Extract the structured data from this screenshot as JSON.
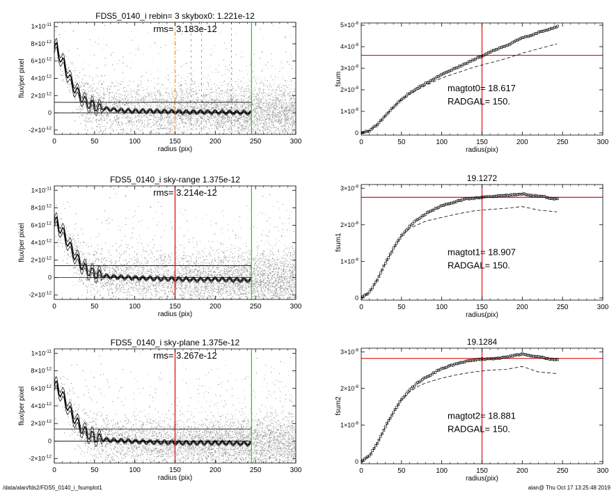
{
  "footer": {
    "path": "/data/alan/fds2/FDS5_0140_i_fsumplot1",
    "stamp": "alan@  Thu Oct 17 13:25:48 2019"
  },
  "colors": {
    "orange": "#ff8c1a",
    "red": "#dd1111",
    "green": "#22cc22",
    "scatter_dark": "#7a7a7a",
    "scatter_light": "#b8b8b8"
  },
  "chart_data": [
    {
      "type": "scatter",
      "id": "p1",
      "title": "FDS5_0140_i rebin= 3    skybox0:  1.221e-12",
      "annotation": "rms= 3.183e-12",
      "xlabel": "radius (pix)",
      "ylabel": "flux/per pixel",
      "xlim": [
        0,
        300
      ],
      "ylim": [
        -2.5e-12,
        1.05e-11
      ],
      "xticks": [
        "0",
        "50",
        "100",
        "150",
        "200",
        "250",
        "300"
      ],
      "yticks": [
        {
          "mant": "-2×10",
          "exp": "-12",
          "v": -2e-12
        },
        {
          "mant": "0",
          "exp": "",
          "v": 0
        },
        {
          "mant": "2×10",
          "exp": "-12",
          "v": 2e-12
        },
        {
          "mant": "4×10",
          "exp": "-12",
          "v": 4e-12
        },
        {
          "mant": "6×10",
          "exp": "-12",
          "v": 6e-12
        },
        {
          "mant": "8×10",
          "exp": "-12",
          "v": 8e-12
        },
        {
          "mant": "1×10",
          "exp": "-11",
          "v": 1e-11
        }
      ],
      "sky_level": 1.221e-12,
      "vlines": [
        {
          "x": 150,
          "color": "orange",
          "dashed": true
        },
        {
          "x": 245,
          "color": "green",
          "dashed": false
        }
      ],
      "extra_dashed_x": [
        170,
        183,
        220
      ],
      "profile": [
        [
          0,
          7.4e-12
        ],
        [
          3,
          7.6e-12
        ],
        [
          6,
          6.8e-12
        ],
        [
          9,
          6e-12
        ],
        [
          12,
          5.7e-12
        ],
        [
          15,
          4.9e-12
        ],
        [
          18,
          4.2e-12
        ],
        [
          21,
          3.6e-12
        ],
        [
          24,
          3e-12
        ],
        [
          27,
          2.6e-12
        ],
        [
          30,
          2.2e-12
        ],
        [
          33,
          1.9e-12
        ],
        [
          36,
          1.5e-12
        ],
        [
          39,
          1.2e-12
        ],
        [
          42,
          1.1e-12
        ],
        [
          45,
          9e-13
        ],
        [
          48,
          9e-13
        ],
        [
          51,
          8e-13
        ],
        [
          55,
          5e-13
        ],
        [
          60,
          5e-13
        ],
        [
          70,
          4e-13
        ],
        [
          80,
          3e-13
        ],
        [
          90,
          2.5e-13
        ],
        [
          100,
          2e-13
        ],
        [
          120,
          2e-13
        ],
        [
          140,
          1.5e-13
        ],
        [
          160,
          1e-13
        ],
        [
          180,
          1e-13
        ],
        [
          200,
          8e-14
        ],
        [
          220,
          5e-14
        ],
        [
          245,
          0.0
        ]
      ]
    },
    {
      "type": "line",
      "id": "p2",
      "title": "",
      "annotation_lines": [
        "magtot0=  18.617",
        "RADGAL=    150."
      ],
      "xlabel": "radius(pix)",
      "ylabel": "fsum",
      "xlim": [
        0,
        300
      ],
      "ylim": [
        -1e-09,
        5.1e-08
      ],
      "xticks": [
        "0",
        "50",
        "100",
        "150",
        "200",
        "250",
        "300"
      ],
      "yticks": [
        {
          "mant": "0",
          "exp": "",
          "v": 0
        },
        {
          "mant": "1×10",
          "exp": "-8",
          "v": 1e-08
        },
        {
          "mant": "2×10",
          "exp": "-8",
          "v": 2e-08
        },
        {
          "mant": "3×10",
          "exp": "-8",
          "v": 3e-08
        },
        {
          "mant": "4×10",
          "exp": "-8",
          "v": 4e-08
        },
        {
          "mant": "5×10",
          "exp": "-8",
          "v": 5e-08
        }
      ],
      "hline": 3.6e-08,
      "vline": 150,
      "series_squares": [
        [
          0,
          0
        ],
        [
          10,
          1e-09
        ],
        [
          20,
          4e-09
        ],
        [
          30,
          8e-09
        ],
        [
          40,
          1.2e-08
        ],
        [
          50,
          1.55e-08
        ],
        [
          60,
          1.85e-08
        ],
        [
          80,
          2.3e-08
        ],
        [
          100,
          2.7e-08
        ],
        [
          120,
          3.05e-08
        ],
        [
          140,
          3.4e-08
        ],
        [
          160,
          3.75e-08
        ],
        [
          180,
          4.05e-08
        ],
        [
          200,
          4.4e-08
        ],
        [
          220,
          4.65e-08
        ],
        [
          245,
          4.95e-08
        ]
      ],
      "series_dashed": [
        [
          0,
          0
        ],
        [
          10,
          1e-09
        ],
        [
          20,
          4e-09
        ],
        [
          30,
          8e-09
        ],
        [
          40,
          1.2e-08
        ],
        [
          50,
          1.55e-08
        ],
        [
          60,
          1.8e-08
        ],
        [
          80,
          2.2e-08
        ],
        [
          100,
          2.55e-08
        ],
        [
          120,
          2.8e-08
        ],
        [
          140,
          3.05e-08
        ],
        [
          160,
          3.25e-08
        ],
        [
          180,
          3.45e-08
        ],
        [
          200,
          3.7e-08
        ],
        [
          220,
          3.9e-08
        ],
        [
          245,
          4.15e-08
        ]
      ]
    },
    {
      "type": "scatter",
      "id": "p3",
      "title": "FDS5_0140_i sky-range  1.375e-12",
      "annotation": "rms= 3.214e-12",
      "xlabel": "radius (pix)",
      "ylabel": "flux/per pixel",
      "xlim": [
        0,
        300
      ],
      "ylim": [
        -2.5e-12,
        1.05e-11
      ],
      "xticks": [
        "0",
        "50",
        "100",
        "150",
        "200",
        "250",
        "300"
      ],
      "yticks": [
        {
          "mant": "-2×10",
          "exp": "-12",
          "v": -2e-12
        },
        {
          "mant": "0",
          "exp": "",
          "v": 0
        },
        {
          "mant": "2×10",
          "exp": "-12",
          "v": 2e-12
        },
        {
          "mant": "4×10",
          "exp": "-12",
          "v": 4e-12
        },
        {
          "mant": "6×10",
          "exp": "-12",
          "v": 6e-12
        },
        {
          "mant": "8×10",
          "exp": "-12",
          "v": 8e-12
        },
        {
          "mant": "1×10",
          "exp": "-11",
          "v": 1e-11
        }
      ],
      "sky_level": 1.375e-12,
      "vlines": [
        {
          "x": 150,
          "color": "red",
          "dashed": false
        },
        {
          "x": 245,
          "color": "green",
          "dashed": false
        }
      ],
      "extra_dashed_x": [],
      "profile": [
        [
          0,
          6.2e-12
        ],
        [
          3,
          6.4e-12
        ],
        [
          6,
          5.8e-12
        ],
        [
          9,
          5.4e-12
        ],
        [
          12,
          5e-12
        ],
        [
          15,
          4.4e-12
        ],
        [
          18,
          3.8e-12
        ],
        [
          21,
          3.3e-12
        ],
        [
          24,
          2.8e-12
        ],
        [
          27,
          2.3e-12
        ],
        [
          30,
          2e-12
        ],
        [
          33,
          1.6e-12
        ],
        [
          36,
          1.2e-12
        ],
        [
          39,
          1e-12
        ],
        [
          42,
          8e-13
        ],
        [
          45,
          6e-13
        ],
        [
          50,
          5e-13
        ],
        [
          55,
          3e-13
        ],
        [
          60,
          2e-13
        ],
        [
          70,
          1e-13
        ],
        [
          80,
          5e-14
        ],
        [
          100,
          -5e-14
        ],
        [
          120,
          -1e-13
        ],
        [
          140,
          -1.5e-13
        ],
        [
          160,
          -2e-13
        ],
        [
          180,
          -2.5e-13
        ],
        [
          200,
          -2e-13
        ],
        [
          220,
          -2.5e-13
        ],
        [
          245,
          -3e-13
        ]
      ]
    },
    {
      "type": "line",
      "id": "p4",
      "title": "19.1272",
      "annotation_lines": [
        "magtot1=  18.907",
        "RADGAL=    150."
      ],
      "xlabel": "radius(pix)",
      "ylabel": "fsum1",
      "xlim": [
        0,
        300
      ],
      "ylim": [
        -6e-10,
        3.1e-08
      ],
      "xticks": [
        "0",
        "50",
        "100",
        "150",
        "200",
        "250",
        "300"
      ],
      "yticks": [
        {
          "mant": "0",
          "exp": "",
          "v": 0
        },
        {
          "mant": "1×10",
          "exp": "-8",
          "v": 1e-08
        },
        {
          "mant": "2×10",
          "exp": "-8",
          "v": 2e-08
        },
        {
          "mant": "3×10",
          "exp": "-8",
          "v": 3e-08
        }
      ],
      "hline": 2.75e-08,
      "vline": 150,
      "series_squares": [
        [
          0,
          0
        ],
        [
          10,
          1.5e-09
        ],
        [
          20,
          5e-09
        ],
        [
          30,
          9.5e-09
        ],
        [
          40,
          1.35e-08
        ],
        [
          50,
          1.7e-08
        ],
        [
          60,
          1.95e-08
        ],
        [
          70,
          2.15e-08
        ],
        [
          80,
          2.3e-08
        ],
        [
          90,
          2.42e-08
        ],
        [
          100,
          2.52e-08
        ],
        [
          115,
          2.62e-08
        ],
        [
          130,
          2.7e-08
        ],
        [
          150,
          2.75e-08
        ],
        [
          170,
          2.78e-08
        ],
        [
          190,
          2.82e-08
        ],
        [
          200,
          2.85e-08
        ],
        [
          210,
          2.8e-08
        ],
        [
          225,
          2.78e-08
        ],
        [
          235,
          2.72e-08
        ],
        [
          245,
          2.7e-08
        ]
      ],
      "series_dashed": [
        [
          0,
          0
        ],
        [
          10,
          1.5e-09
        ],
        [
          20,
          5e-09
        ],
        [
          30,
          9.5e-09
        ],
        [
          40,
          1.35e-08
        ],
        [
          50,
          1.7e-08
        ],
        [
          60,
          1.9e-08
        ],
        [
          70,
          2e-08
        ],
        [
          80,
          2.1e-08
        ],
        [
          100,
          2.2e-08
        ],
        [
          120,
          2.3e-08
        ],
        [
          140,
          2.38e-08
        ],
        [
          160,
          2.42e-08
        ],
        [
          180,
          2.45e-08
        ],
        [
          200,
          2.5e-08
        ],
        [
          220,
          2.4e-08
        ],
        [
          245,
          2.35e-08
        ]
      ]
    },
    {
      "type": "scatter",
      "id": "p5",
      "title": "FDS5_0140_i sky-plane  1.375e-12",
      "annotation": "rms= 3.267e-12",
      "xlabel": "radius (pix)",
      "ylabel": "flux/per pixel",
      "xlim": [
        0,
        300
      ],
      "ylim": [
        -2.5e-12,
        1.05e-11
      ],
      "xticks": [
        "0",
        "50",
        "100",
        "150",
        "200",
        "250",
        "300"
      ],
      "yticks": [
        {
          "mant": "-2×10",
          "exp": "-12",
          "v": -2e-12
        },
        {
          "mant": "0",
          "exp": "",
          "v": 0
        },
        {
          "mant": "2×10",
          "exp": "-12",
          "v": 2e-12
        },
        {
          "mant": "4×10",
          "exp": "-12",
          "v": 4e-12
        },
        {
          "mant": "6×10",
          "exp": "-12",
          "v": 6e-12
        },
        {
          "mant": "8×10",
          "exp": "-12",
          "v": 8e-12
        },
        {
          "mant": "1×10",
          "exp": "-11",
          "v": 1e-11
        }
      ],
      "sky_level": 1.375e-12,
      "vlines": [
        {
          "x": 150,
          "color": "red",
          "dashed": false
        },
        {
          "x": 245,
          "color": "green",
          "dashed": false
        }
      ],
      "extra_dashed_x": [],
      "profile": [
        [
          0,
          6.2e-12
        ],
        [
          3,
          6.3e-12
        ],
        [
          6,
          5.8e-12
        ],
        [
          9,
          5.3e-12
        ],
        [
          12,
          4.9e-12
        ],
        [
          15,
          4.3e-12
        ],
        [
          18,
          3.7e-12
        ],
        [
          21,
          3.2e-12
        ],
        [
          24,
          2.7e-12
        ],
        [
          27,
          2.3e-12
        ],
        [
          30,
          1.9e-12
        ],
        [
          33,
          1.5e-12
        ],
        [
          36,
          1.2e-12
        ],
        [
          39,
          1e-12
        ],
        [
          42,
          8e-13
        ],
        [
          45,
          6e-13
        ],
        [
          50,
          5e-13
        ],
        [
          55,
          3e-13
        ],
        [
          60,
          2e-13
        ],
        [
          70,
          1e-13
        ],
        [
          80,
          5e-14
        ],
        [
          100,
          -5e-14
        ],
        [
          120,
          -1e-13
        ],
        [
          140,
          -1.5e-13
        ],
        [
          160,
          -2e-13
        ],
        [
          180,
          -2e-13
        ],
        [
          200,
          -2e-13
        ],
        [
          220,
          -2.5e-13
        ],
        [
          245,
          -3e-13
        ]
      ]
    },
    {
      "type": "line",
      "id": "p6",
      "title": "19.1284",
      "annotation_lines": [
        "magtot2=  18.881",
        "RADGAL=    150."
      ],
      "xlabel": "radius(pix)",
      "ylabel": "fsum2",
      "xlim": [
        0,
        300
      ],
      "ylim": [
        -6e-10,
        3.1e-08
      ],
      "xticks": [
        "0",
        "50",
        "100",
        "150",
        "200",
        "250",
        "300"
      ],
      "yticks": [
        {
          "mant": "0",
          "exp": "",
          "v": 0
        },
        {
          "mant": "1×10",
          "exp": "-8",
          "v": 1e-08
        },
        {
          "mant": "2×10",
          "exp": "-8",
          "v": 2e-08
        },
        {
          "mant": "3×10",
          "exp": "-8",
          "v": 3e-08
        }
      ],
      "hline": 2.82e-08,
      "vline": 150,
      "series_squares": [
        [
          0,
          0
        ],
        [
          10,
          1.5e-09
        ],
        [
          20,
          5e-09
        ],
        [
          30,
          9.5e-09
        ],
        [
          40,
          1.35e-08
        ],
        [
          50,
          1.7e-08
        ],
        [
          60,
          1.95e-08
        ],
        [
          70,
          2.15e-08
        ],
        [
          80,
          2.3e-08
        ],
        [
          90,
          2.42e-08
        ],
        [
          100,
          2.55e-08
        ],
        [
          115,
          2.65e-08
        ],
        [
          130,
          2.75e-08
        ],
        [
          150,
          2.8e-08
        ],
        [
          170,
          2.82e-08
        ],
        [
          190,
          2.9e-08
        ],
        [
          200,
          2.95e-08
        ],
        [
          210,
          2.9e-08
        ],
        [
          225,
          2.85e-08
        ],
        [
          235,
          2.8e-08
        ],
        [
          245,
          2.78e-08
        ]
      ],
      "series_dashed": [
        [
          0,
          0
        ],
        [
          10,
          1.5e-09
        ],
        [
          20,
          5e-09
        ],
        [
          30,
          9.5e-09
        ],
        [
          40,
          1.35e-08
        ],
        [
          50,
          1.7e-08
        ],
        [
          60,
          1.9e-08
        ],
        [
          70,
          2.05e-08
        ],
        [
          80,
          2.15e-08
        ],
        [
          100,
          2.28e-08
        ],
        [
          120,
          2.38e-08
        ],
        [
          140,
          2.45e-08
        ],
        [
          160,
          2.5e-08
        ],
        [
          180,
          2.52e-08
        ],
        [
          200,
          2.6e-08
        ],
        [
          220,
          2.45e-08
        ],
        [
          245,
          2.4e-08
        ]
      ]
    }
  ]
}
